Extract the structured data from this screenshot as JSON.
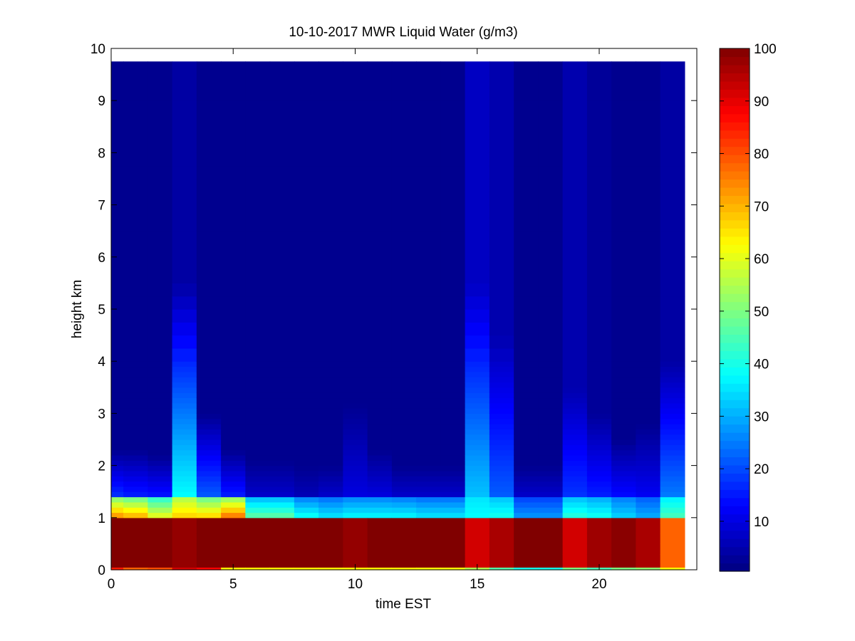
{
  "chart_data": {
    "type": "heatmap",
    "title": "10-10-2017 MWR Liquid Water (g/m3)",
    "xlabel": "time EST",
    "ylabel": "height km",
    "xlim": [
      0,
      24
    ],
    "ylim": [
      0,
      10
    ],
    "x_ticks": [
      0,
      5,
      10,
      15,
      20
    ],
    "y_ticks": [
      0,
      1,
      2,
      3,
      4,
      5,
      6,
      7,
      8,
      9,
      10
    ],
    "colorbar": {
      "range": [
        0.5,
        100
      ],
      "ticks": [
        10,
        20,
        30,
        40,
        50,
        60,
        70,
        80,
        90,
        100
      ],
      "colormap": "jet"
    },
    "x_edges": [
      0,
      0.5,
      1.5,
      2.5,
      3.5,
      4.5,
      5.5,
      6.5,
      7.5,
      8.5,
      9.5,
      10.5,
      11.5,
      12.5,
      13.5,
      14.5,
      15.5,
      16.5,
      17.5,
      18.5,
      19.5,
      20.5,
      21.5,
      22.5,
      23.5
    ],
    "y_edges": [
      0,
      0.05,
      0.15,
      0.3,
      0.5,
      0.7,
      0.9,
      1.0,
      1.1,
      1.2,
      1.3,
      1.4,
      1.5,
      1.6,
      1.7,
      1.8,
      1.9,
      2.0,
      2.1,
      2.2,
      2.3,
      2.4,
      2.5,
      2.6,
      2.7,
      2.8,
      2.9,
      3.0,
      3.1,
      3.2,
      3.3,
      3.4,
      3.5,
      3.6,
      3.7,
      3.8,
      3.9,
      4.0,
      4.25,
      4.5,
      4.75,
      5.0,
      5.25,
      5.5,
      5.75,
      6.0,
      6.25,
      6.5,
      6.75,
      7.0,
      7.25,
      7.5,
      7.75,
      8.0,
      8.25,
      8.5,
      8.75,
      9.0,
      9.25,
      9.5,
      9.75
    ],
    "column_profiles": [
      {
        "bottom": 85,
        "core": 100,
        "top": 1.05,
        "band": 75,
        "tail": 18,
        "tail_top": 2.3,
        "upper": 2
      },
      {
        "bottom": 78,
        "core": 100,
        "top": 1.0,
        "band": 72,
        "tail": 16,
        "tail_top": 2.3,
        "upper": 2
      },
      {
        "bottom": 80,
        "core": 100,
        "top": 1.0,
        "band": 62,
        "tail": 15,
        "tail_top": 2.2,
        "upper": 2
      },
      {
        "bottom": 92,
        "core": 98,
        "top": 1.0,
        "band": 68,
        "tail": 38,
        "tail_top": 5.5,
        "upper": 4
      },
      {
        "bottom": 88,
        "core": 100,
        "top": 1.0,
        "band": 68,
        "tail": 22,
        "tail_top": 3.0,
        "upper": 2
      },
      {
        "bottom": 64,
        "core": 100,
        "top": 1.0,
        "band": 78,
        "tail": 16,
        "tail_top": 2.3,
        "upper": 2
      },
      {
        "bottom": 64,
        "core": 100,
        "top": 1.0,
        "band": 48,
        "tail": 8,
        "tail_top": 2.1,
        "upper": 2
      },
      {
        "bottom": 64,
        "core": 100,
        "top": 1.0,
        "band": 48,
        "tail": 8,
        "tail_top": 2.1,
        "upper": 2
      },
      {
        "bottom": 64,
        "core": 100,
        "top": 1.0,
        "band": 40,
        "tail": 6,
        "tail_top": 2.0,
        "upper": 2
      },
      {
        "bottom": 64,
        "core": 100,
        "top": 1.0,
        "band": 36,
        "tail": 8,
        "tail_top": 2.0,
        "upper": 2
      },
      {
        "bottom": 64,
        "core": 98,
        "top": 1.05,
        "band": 38,
        "tail": 10,
        "tail_top": 3.2,
        "upper": 2
      },
      {
        "bottom": 64,
        "core": 100,
        "top": 1.05,
        "band": 38,
        "tail": 10,
        "tail_top": 2.3,
        "upper": 2
      },
      {
        "bottom": 64,
        "core": 100,
        "top": 1.05,
        "band": 38,
        "tail": 8,
        "tail_top": 2.0,
        "upper": 2
      },
      {
        "bottom": 62,
        "core": 100,
        "top": 1.05,
        "band": 36,
        "tail": 8,
        "tail_top": 2.0,
        "upper": 2
      },
      {
        "bottom": 62,
        "core": 100,
        "top": 1.05,
        "band": 36,
        "tail": 8,
        "tail_top": 2.0,
        "upper": 2
      },
      {
        "bottom": 55,
        "core": 92,
        "top": 1.05,
        "band": 38,
        "tail": 32,
        "tail_top": 5.5,
        "upper": 7
      },
      {
        "bottom": 46,
        "core": 96,
        "top": 1.05,
        "band": 40,
        "tail": 22,
        "tail_top": 4.5,
        "upper": 5
      },
      {
        "bottom": 40,
        "core": 100,
        "top": 1.05,
        "band": 28,
        "tail": 8,
        "tail_top": 2.0,
        "upper": 2
      },
      {
        "bottom": 40,
        "core": 100,
        "top": 1.05,
        "band": 28,
        "tail": 8,
        "tail_top": 2.0,
        "upper": 2
      },
      {
        "bottom": 50,
        "core": 92,
        "top": 1.05,
        "band": 42,
        "tail": 18,
        "tail_top": 3.5,
        "upper": 5
      },
      {
        "bottom": 45,
        "core": 97,
        "top": 1.05,
        "band": 40,
        "tail": 16,
        "tail_top": 3.0,
        "upper": 3
      },
      {
        "bottom": 50,
        "core": 99,
        "top": 1.05,
        "band": 34,
        "tail": 14,
        "tail_top": 2.5,
        "upper": 2
      },
      {
        "bottom": 52,
        "core": 96,
        "top": 1.05,
        "band": 30,
        "tail": 12,
        "tail_top": 2.8,
        "upper": 2
      },
      {
        "bottom": 62,
        "core": 78,
        "top": 1.05,
        "band": 45,
        "tail": 25,
        "tail_top": 4.0,
        "upper": 4
      }
    ]
  }
}
